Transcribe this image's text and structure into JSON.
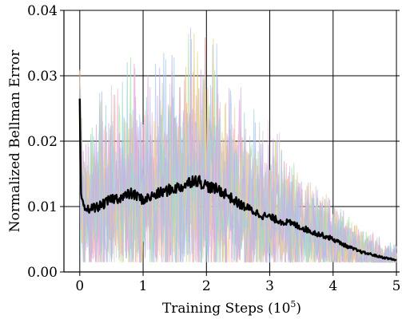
{
  "chart_data": {
    "type": "line",
    "xlabel": "Training Steps (10",
    "xlabel_sup": "5",
    "xlabel_close": ")",
    "ylabel": "Normalized Bellman Error",
    "xlim": [
      -0.25,
      5.05
    ],
    "ylim": [
      0,
      0.04
    ],
    "grid": true,
    "x_ticks": [
      0,
      1,
      2,
      3,
      4,
      5
    ],
    "x_tick_labels": [
      "0",
      "1",
      "2",
      "3",
      "4",
      "5"
    ],
    "y_ticks": [
      0,
      0.01,
      0.02,
      0.03,
      0.04
    ],
    "y_tick_labels": [
      "0.00",
      "0.01",
      "0.02",
      "0.03",
      "0.04"
    ],
    "mean_series": {
      "color": "#000000",
      "x": [
        0,
        0.01,
        0.02,
        0.04,
        0.06,
        0.1,
        0.2,
        0.3,
        0.4,
        0.5,
        0.6,
        0.7,
        0.8,
        0.9,
        1.0,
        1.1,
        1.2,
        1.3,
        1.4,
        1.5,
        1.6,
        1.7,
        1.8,
        1.9,
        2.0,
        2.1,
        2.2,
        2.3,
        2.4,
        2.5,
        2.6,
        2.7,
        2.8,
        2.9,
        3.0,
        3.1,
        3.2,
        3.3,
        3.4,
        3.5,
        3.6,
        3.7,
        3.8,
        3.9,
        4.0,
        4.1,
        4.2,
        4.3,
        4.4,
        4.5,
        4.6,
        4.7,
        4.8,
        4.9,
        5.0
      ],
      "y": [
        0.0265,
        0.018,
        0.012,
        0.0105,
        0.0098,
        0.0095,
        0.0098,
        0.01,
        0.0105,
        0.0112,
        0.0113,
        0.0115,
        0.012,
        0.0116,
        0.011,
        0.0114,
        0.0118,
        0.0122,
        0.0125,
        0.0128,
        0.013,
        0.0135,
        0.0142,
        0.0138,
        0.0132,
        0.0128,
        0.0125,
        0.012,
        0.0112,
        0.0105,
        0.01,
        0.0095,
        0.009,
        0.0086,
        0.0084,
        0.008,
        0.0077,
        0.0075,
        0.0072,
        0.0068,
        0.0064,
        0.006,
        0.0057,
        0.0054,
        0.005,
        0.0045,
        0.004,
        0.0036,
        0.0032,
        0.0029,
        0.0027,
        0.0024,
        0.0022,
        0.002,
        0.0018
      ]
    },
    "run_colors": [
      "#ff9999",
      "#a8e6a3",
      "#f9cf9a",
      "#d6a8e0",
      "#a9c8ee",
      "#f2b3d8",
      "#cfcfcf",
      "#e6d28a",
      "#9ad6d6",
      "#c4b0e8"
    ]
  }
}
